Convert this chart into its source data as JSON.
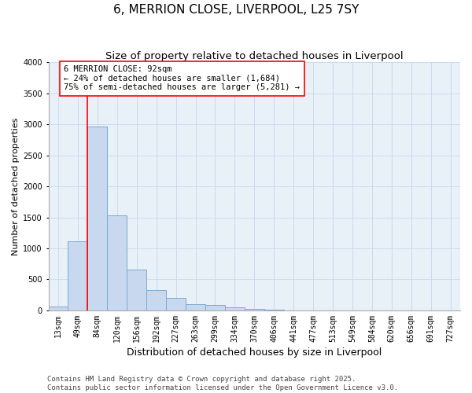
{
  "title": "6, MERRION CLOSE, LIVERPOOL, L25 7SY",
  "subtitle": "Size of property relative to detached houses in Liverpool",
  "xlabel": "Distribution of detached houses by size in Liverpool",
  "ylabel": "Number of detached properties",
  "categories": [
    "13sqm",
    "49sqm",
    "84sqm",
    "120sqm",
    "156sqm",
    "192sqm",
    "227sqm",
    "263sqm",
    "299sqm",
    "334sqm",
    "370sqm",
    "406sqm",
    "441sqm",
    "477sqm",
    "513sqm",
    "549sqm",
    "584sqm",
    "620sqm",
    "656sqm",
    "691sqm",
    "727sqm"
  ],
  "values": [
    60,
    1120,
    2960,
    1530,
    660,
    330,
    205,
    100,
    90,
    55,
    25,
    10,
    5,
    3,
    2,
    1,
    1,
    0,
    0,
    0,
    0
  ],
  "bar_color": "#c8d8ee",
  "bar_edge_color": "#7aaad0",
  "grid_color": "#c8d8ee",
  "bg_color": "#e8f0f8",
  "vline_x_index": 2,
  "vline_color": "red",
  "annotation_text": "6 MERRION CLOSE: 92sqm\n← 24% of detached houses are smaller (1,684)\n75% of semi-detached houses are larger (5,281) →",
  "annotation_box_color": "red",
  "ylim": [
    0,
    4000
  ],
  "yticks": [
    0,
    500,
    1000,
    1500,
    2000,
    2500,
    3000,
    3500,
    4000
  ],
  "footer_line1": "Contains HM Land Registry data © Crown copyright and database right 2025.",
  "footer_line2": "Contains public sector information licensed under the Open Government Licence v3.0.",
  "title_fontsize": 11,
  "subtitle_fontsize": 9.5,
  "xlabel_fontsize": 9,
  "ylabel_fontsize": 8,
  "tick_fontsize": 7,
  "annotation_fontsize": 7.5,
  "footer_fontsize": 6.5
}
